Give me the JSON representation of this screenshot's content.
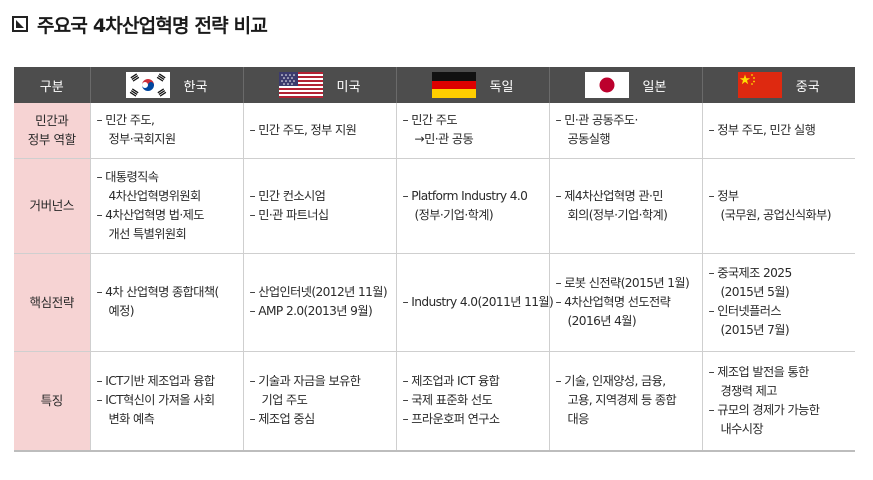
{
  "title": "주요국 4차산업혁명 전략 비교",
  "table": {
    "corner": "구분",
    "countries": [
      {
        "name": "한국",
        "flag": "korea-flag-icon"
      },
      {
        "name": "미국",
        "flag": "usa-flag-icon"
      },
      {
        "name": "독일",
        "flag": "germany-flag-icon"
      },
      {
        "name": "일본",
        "flag": "japan-flag-icon"
      },
      {
        "name": "중국",
        "flag": "china-flag-icon"
      }
    ],
    "rows": [
      {
        "label": [
          "민간과",
          "정부 역할"
        ],
        "cells": [
          [
            "– 민간 주도,",
            "  정부·국회지원"
          ],
          [
            "– 민간 주도, 정부 지원"
          ],
          [
            "– 민간 주도",
            "  →민·관 공동"
          ],
          [
            "– 민·관 공동주도·",
            "  공동실행"
          ],
          [
            "– 정부 주도, 민간 실행"
          ]
        ]
      },
      {
        "label": [
          "거버넌스"
        ],
        "cells": [
          [
            "– 대통령직속",
            "  4차산업혁명위원회",
            "– 4차산업혁명 법·제도",
            "  개선 특별위원회"
          ],
          [
            "– 민간 컨소시엄",
            "– 민·관 파트너십"
          ],
          [
            "– Platform Industry 4.0",
            "  (정부·기업·학계)"
          ],
          [
            "– 제4차산업혁명 관·민",
            "  회의(정부·기업·학계)"
          ],
          [
            "– 정부",
            "  (국무원, 공업신식화부)"
          ]
        ]
      },
      {
        "label": [
          "핵심전략"
        ],
        "cells": [
          [
            "– 4차 산업혁명 종합대책(",
            "  예정)"
          ],
          [
            "– 산업인터넷(2012년 11월)",
            "– AMP 2.0(2013년 9월)"
          ],
          [
            "– Industry 4.0(2011년 11월)"
          ],
          [
            "– 로봇 신전략(2015년 1월)",
            "– 4차산업혁명 선도전략",
            "  (2016년 4월)"
          ],
          [
            "– 중국제조 2025",
            "  (2015년 5월)",
            "– 인터넷플러스",
            "  (2015년 7월)"
          ]
        ]
      },
      {
        "label": [
          "특징"
        ],
        "cells": [
          [
            "– ICT기반 제조업과 융합",
            "– ICT혁신이 가져올 사회",
            "  변화 예측"
          ],
          [
            "– 기술과 자금을 보유한",
            "  기업 주도",
            "– 제조업 중심"
          ],
          [
            "– 제조업과 ICT 융합",
            "– 국제 표준화 선도",
            "– 프라운호퍼 연구소"
          ],
          [
            "– 기술, 인재양성, 금융,",
            "  고용, 지역경제 등 종합",
            "  대응"
          ],
          [
            "– 제조업 발전을 통한",
            "  경쟁력 제고",
            "– 규모의 경제가 가능한",
            "  내수시장"
          ]
        ]
      }
    ]
  }
}
